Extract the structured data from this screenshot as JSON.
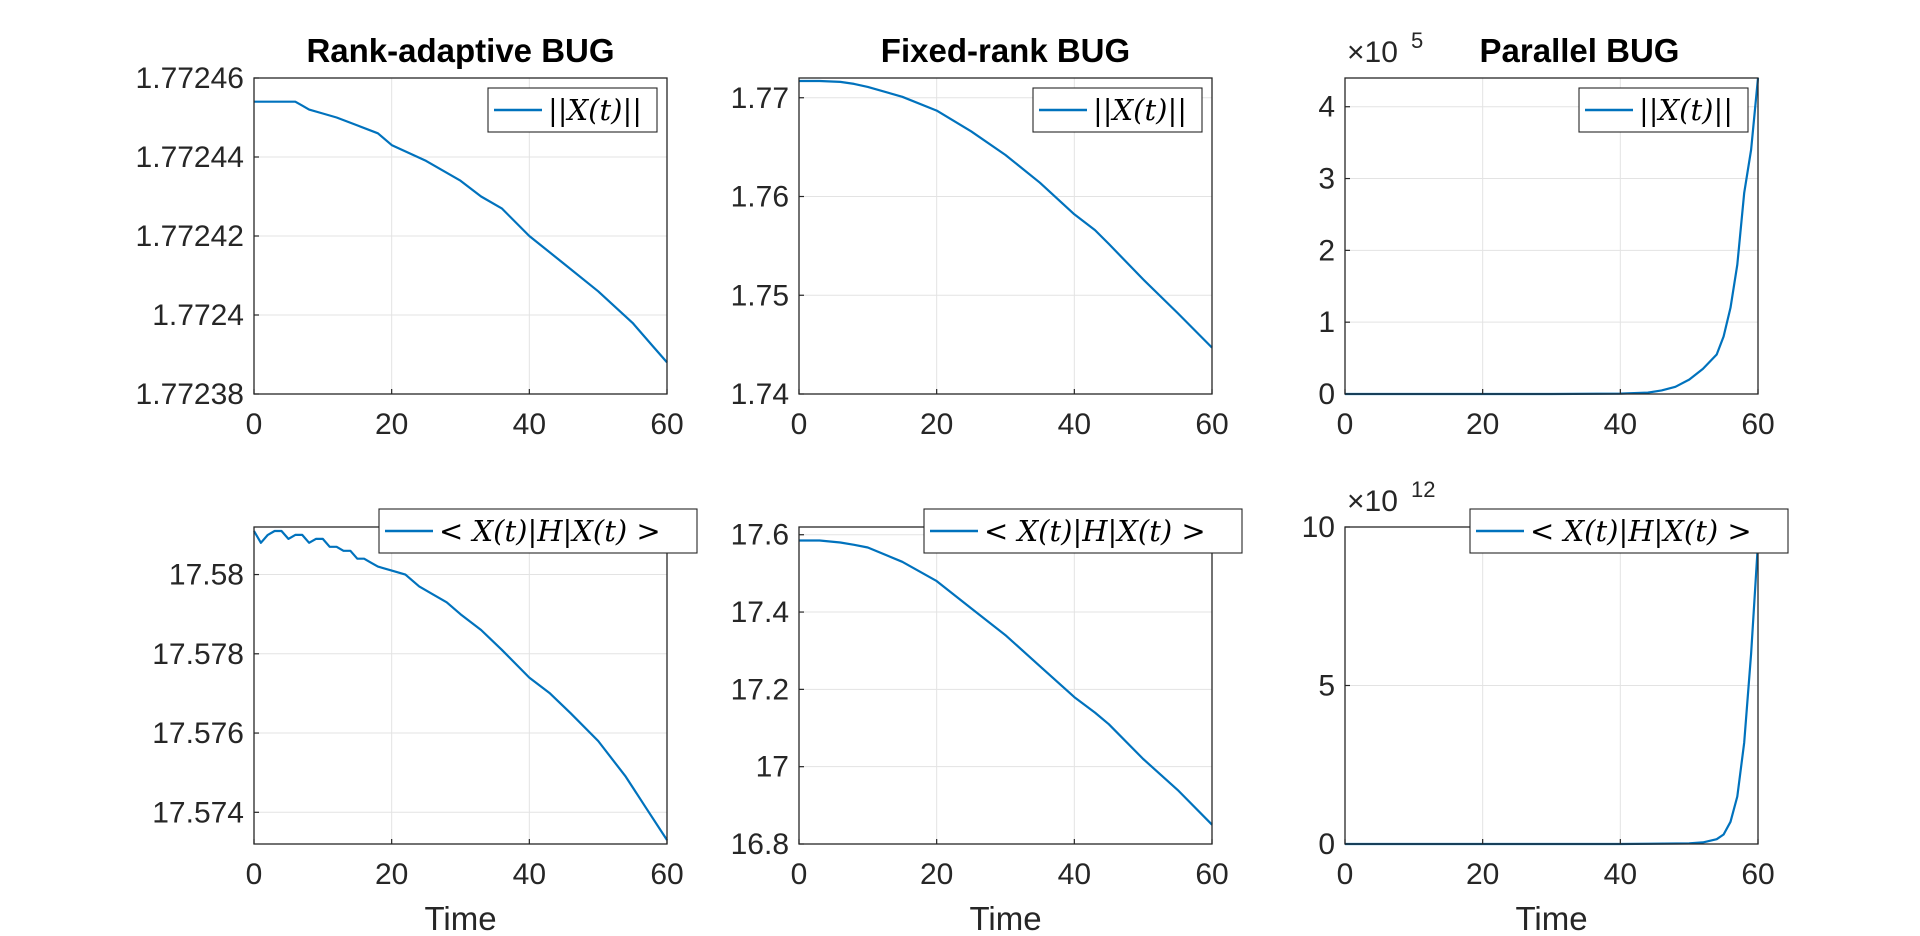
{
  "chart_data": [
    {
      "type": "line",
      "title": "Rank-adaptive BUG",
      "xlabel": "",
      "xlim": [
        0,
        60
      ],
      "ylim": [
        1.77238,
        1.77246
      ],
      "xticks": [
        0,
        20,
        40,
        60
      ],
      "xtick_labels": [
        "0",
        "20",
        "40",
        "60"
      ],
      "yticks": [
        1.77238,
        1.7724,
        1.77242,
        1.77244,
        1.77246
      ],
      "ytick_labels": [
        "1.77238",
        "1.7724",
        "1.77242",
        "1.77244",
        "1.77246"
      ],
      "grid": true,
      "legend_position": "top-right",
      "series": [
        {
          "name": "||X(t)||",
          "color": "#0072BD",
          "x": [
            0,
            2,
            4,
            6,
            7,
            8,
            10,
            12,
            15,
            18,
            20,
            25,
            30,
            33,
            36,
            40,
            45,
            50,
            55,
            58,
            60
          ],
          "y": [
            1.772454,
            1.772454,
            1.772454,
            1.772454,
            1.772453,
            1.772452,
            1.772451,
            1.77245,
            1.772448,
            1.772446,
            1.772443,
            1.772439,
            1.772434,
            1.77243,
            1.772427,
            1.77242,
            1.772413,
            1.772406,
            1.772398,
            1.772392,
            1.772388
          ]
        }
      ]
    },
    {
      "type": "line",
      "title": "Fixed-rank BUG",
      "xlabel": "",
      "xlim": [
        0,
        60
      ],
      "ylim": [
        1.74,
        1.772
      ],
      "xticks": [
        0,
        20,
        40,
        60
      ],
      "xtick_labels": [
        "0",
        "20",
        "40",
        "60"
      ],
      "yticks": [
        1.74,
        1.75,
        1.76,
        1.77
      ],
      "ytick_labels": [
        "1.74",
        "1.75",
        "1.76",
        "1.77"
      ],
      "grid": true,
      "legend_position": "top-right",
      "series": [
        {
          "name": "||X(t)||",
          "color": "#0072BD",
          "x": [
            0,
            3,
            6,
            8,
            10,
            15,
            20,
            25,
            30,
            35,
            40,
            43,
            45,
            50,
            55,
            60
          ],
          "y": [
            1.7717,
            1.7717,
            1.7716,
            1.7714,
            1.7711,
            1.7701,
            1.7687,
            1.7666,
            1.7642,
            1.7614,
            1.7582,
            1.7566,
            1.7552,
            1.7516,
            1.7482,
            1.7447
          ]
        }
      ]
    },
    {
      "type": "line",
      "title": "Parallel BUG",
      "xlabel": "",
      "xlim": [
        0,
        60
      ],
      "ylim": [
        0,
        4.4
      ],
      "y_exponent": "5",
      "xticks": [
        0,
        20,
        40,
        60
      ],
      "xtick_labels": [
        "0",
        "20",
        "40",
        "60"
      ],
      "yticks": [
        0,
        1,
        2,
        3,
        4
      ],
      "ytick_labels": [
        "0",
        "1",
        "2",
        "3",
        "4"
      ],
      "grid": true,
      "legend_position": "top-right",
      "series": [
        {
          "name": "||X(t)||",
          "color": "#0072BD",
          "x": [
            0,
            10,
            20,
            30,
            40,
            44,
            46,
            48,
            50,
            52,
            54,
            55,
            56,
            57,
            58,
            59,
            60
          ],
          "y": [
            0,
            0,
            0,
            0,
            0.005,
            0.02,
            0.05,
            0.1,
            0.2,
            0.35,
            0.55,
            0.8,
            1.2,
            1.8,
            2.8,
            3.4,
            4.4
          ]
        }
      ]
    },
    {
      "type": "line",
      "title": "",
      "xlabel": "Time",
      "xlim": [
        0,
        60
      ],
      "ylim": [
        17.5732,
        17.5812
      ],
      "xticks": [
        0,
        20,
        40,
        60
      ],
      "xtick_labels": [
        "0",
        "20",
        "40",
        "60"
      ],
      "yticks": [
        17.574,
        17.576,
        17.578,
        17.58
      ],
      "ytick_labels": [
        "17.574",
        "17.576",
        "17.578",
        "17.58"
      ],
      "grid": true,
      "legend_position": "top-right",
      "series": [
        {
          "name": "< X(t)|H|X(t) >",
          "color": "#0072BD",
          "x": [
            0,
            1,
            2,
            3,
            4,
            5,
            6,
            7,
            8,
            9,
            10,
            11,
            12,
            13,
            14,
            15,
            16,
            17,
            18,
            20,
            22,
            24,
            26,
            28,
            30,
            33,
            36,
            40,
            43,
            46,
            50,
            54,
            57,
            60
          ],
          "y": [
            17.5811,
            17.5808,
            17.581,
            17.5811,
            17.5811,
            17.5809,
            17.581,
            17.581,
            17.5808,
            17.5809,
            17.5809,
            17.5807,
            17.5807,
            17.5806,
            17.5806,
            17.5804,
            17.5804,
            17.5803,
            17.5802,
            17.5801,
            17.58,
            17.5797,
            17.5795,
            17.5793,
            17.579,
            17.5786,
            17.5781,
            17.5774,
            17.577,
            17.5765,
            17.5758,
            17.5749,
            17.5741,
            17.5733
          ]
        }
      ]
    },
    {
      "type": "line",
      "title": "",
      "xlabel": "Time",
      "xlim": [
        0,
        60
      ],
      "ylim": [
        16.8,
        17.62
      ],
      "xticks": [
        0,
        20,
        40,
        60
      ],
      "xtick_labels": [
        "0",
        "20",
        "40",
        "60"
      ],
      "yticks": [
        16.8,
        17,
        17.2,
        17.4,
        17.6
      ],
      "ytick_labels": [
        "16.8",
        "17",
        "17.2",
        "17.4",
        "17.6"
      ],
      "grid": true,
      "legend_position": "top-right",
      "series": [
        {
          "name": "< X(t)|H|X(t) >",
          "color": "#0072BD",
          "x": [
            0,
            3,
            6,
            8,
            10,
            15,
            20,
            25,
            30,
            35,
            40,
            43,
            45,
            50,
            55,
            60
          ],
          "y": [
            17.585,
            17.585,
            17.58,
            17.574,
            17.567,
            17.53,
            17.48,
            17.41,
            17.34,
            17.26,
            17.18,
            17.14,
            17.11,
            17.02,
            16.94,
            16.85
          ]
        }
      ]
    },
    {
      "type": "line",
      "title": "",
      "xlabel": "Time",
      "xlim": [
        0,
        60
      ],
      "ylim": [
        0,
        10
      ],
      "y_exponent": "12",
      "xticks": [
        0,
        20,
        40,
        60
      ],
      "xtick_labels": [
        "0",
        "20",
        "40",
        "60"
      ],
      "yticks": [
        0,
        5,
        10
      ],
      "ytick_labels": [
        "0",
        "5",
        "10"
      ],
      "grid": true,
      "legend_position": "top-right",
      "series": [
        {
          "name": "< X(t)|H|X(t) >",
          "color": "#0072BD",
          "x": [
            0,
            20,
            40,
            50,
            52,
            54,
            55,
            56,
            57,
            58,
            59,
            60
          ],
          "y": [
            0,
            0,
            0,
            0.02,
            0.05,
            0.15,
            0.3,
            0.7,
            1.5,
            3.2,
            6,
            9.5
          ]
        }
      ]
    }
  ]
}
